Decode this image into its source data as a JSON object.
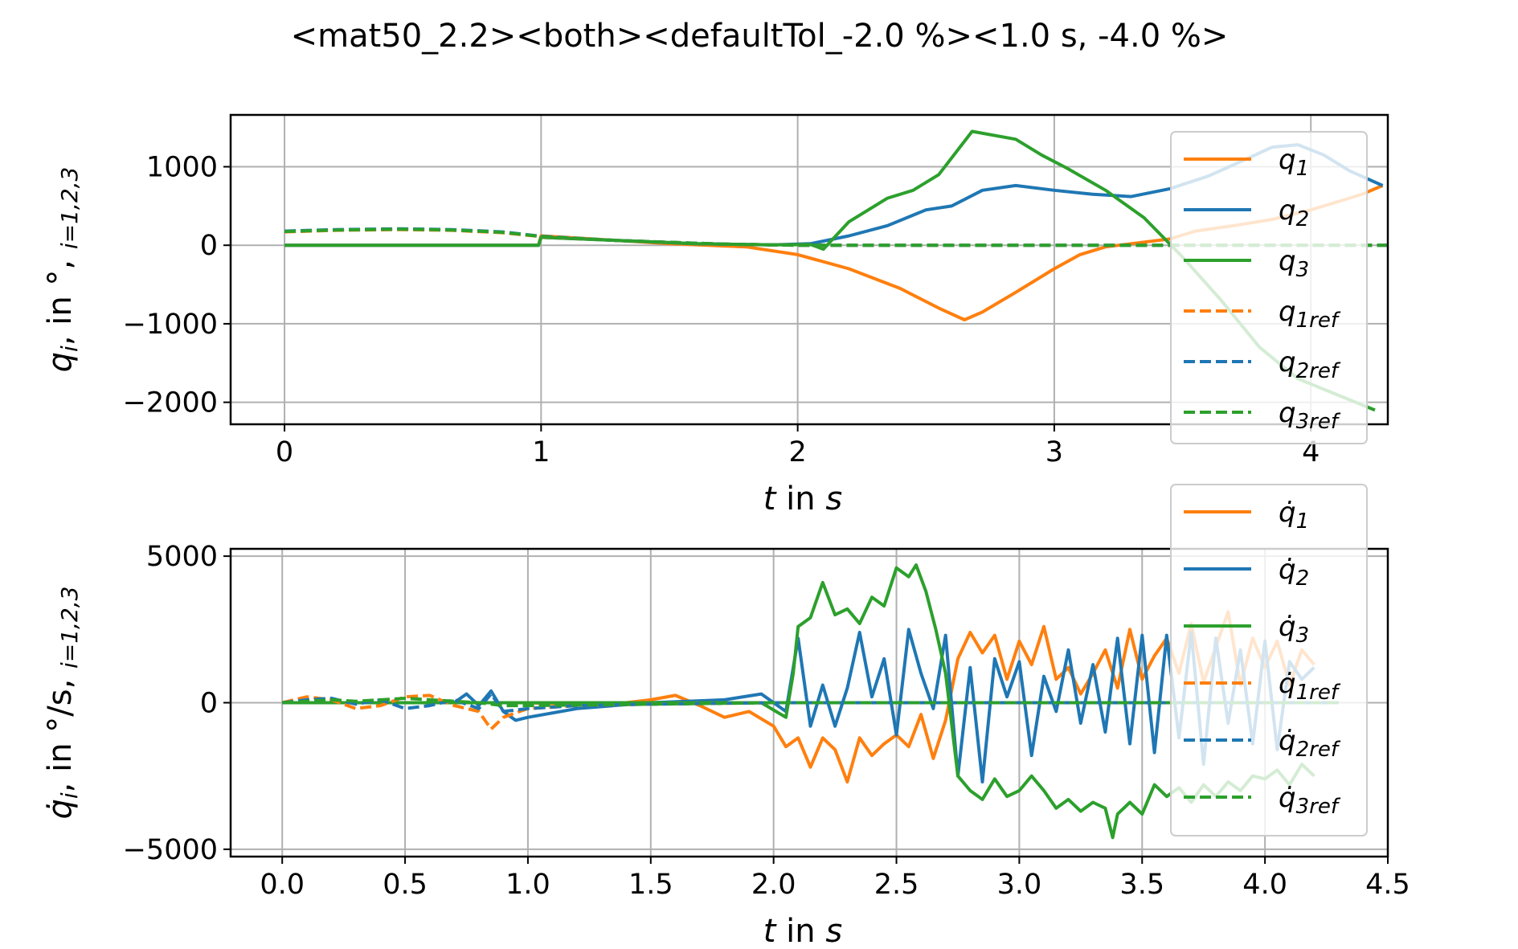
{
  "title": "<mat50_2.2><both><defaultTol_-2.0 %><1.0 s, -4.0 %>",
  "colors": {
    "q1": "#ff7f0e",
    "q2": "#1f77b4",
    "q3": "#2ca02c",
    "grid": "#b0b0b0"
  },
  "chart_data": [
    {
      "type": "line",
      "xlabel": "t in s",
      "ylabel": "q_i, in °, i=1,2,3",
      "xlim": [
        -0.21,
        4.3
      ],
      "ylim": [
        -2280,
        1660
      ],
      "xticks": [
        0,
        1,
        2,
        3,
        4
      ],
      "yticks": [
        1000,
        0,
        -1000,
        -2000
      ],
      "xtick_labels": [
        "0",
        "1",
        "2",
        "3",
        "4"
      ],
      "ytick_labels": [
        "1000",
        "0",
        "−1000",
        "−2000"
      ],
      "grid": true,
      "legend_position": "top-right",
      "series": [
        {
          "name": "q1",
          "color": "#ff7f0e",
          "dash": "solid",
          "x": [
            0,
            0.99,
            1.0,
            1.2,
            1.5,
            1.8,
            2.0,
            2.2,
            2.4,
            2.55,
            2.65,
            2.72,
            2.85,
            3.0,
            3.1,
            3.2,
            3.3,
            3.45,
            3.55,
            3.7,
            3.85,
            4.0,
            4.1,
            4.2,
            4.28
          ],
          "y": [
            0,
            0,
            120,
            80,
            20,
            -20,
            -120,
            -300,
            -550,
            -800,
            -950,
            -850,
            -600,
            -300,
            -120,
            -20,
            20,
            80,
            180,
            250,
            330,
            450,
            550,
            650,
            760
          ]
        },
        {
          "name": "q2",
          "color": "#1f77b4",
          "dash": "solid",
          "x": [
            0,
            0.99,
            1.0,
            1.3,
            1.6,
            1.9,
            2.05,
            2.2,
            2.35,
            2.5,
            2.6,
            2.72,
            2.85,
            3.0,
            3.15,
            3.3,
            3.45,
            3.6,
            3.75,
            3.85,
            3.95,
            4.05,
            4.15,
            4.28
          ],
          "y": [
            0,
            0,
            100,
            60,
            20,
            5,
            20,
            120,
            250,
            450,
            500,
            700,
            760,
            700,
            650,
            620,
            720,
            880,
            1100,
            1250,
            1280,
            1150,
            950,
            760
          ]
        },
        {
          "name": "q3",
          "color": "#2ca02c",
          "dash": "solid",
          "x": [
            0,
            0.99,
            1.0,
            1.3,
            1.6,
            1.9,
            2.05,
            2.1,
            2.2,
            2.35,
            2.45,
            2.55,
            2.68,
            2.85,
            2.95,
            3.05,
            3.2,
            3.35,
            3.5,
            3.65,
            3.8,
            3.95,
            4.1,
            4.25
          ],
          "y": [
            0,
            0,
            100,
            60,
            20,
            5,
            10,
            -50,
            300,
            600,
            700,
            900,
            1450,
            1350,
            1150,
            980,
            700,
            350,
            -150,
            -700,
            -1300,
            -1700,
            -1900,
            -2100
          ]
        },
        {
          "name": "q1ref",
          "color": "#ff7f0e",
          "dash": "dashed",
          "x": [
            0,
            0.2,
            0.45,
            0.65,
            0.85,
            1.0,
            1.3,
            1.7,
            2.0,
            4.3
          ],
          "y": [
            170,
            190,
            200,
            190,
            160,
            110,
            60,
            15,
            0,
            0
          ]
        },
        {
          "name": "q2ref",
          "color": "#1f77b4",
          "dash": "dashed",
          "x": [
            0,
            0.2,
            0.45,
            0.65,
            0.85,
            1.0,
            1.3,
            1.7,
            2.0,
            4.3
          ],
          "y": [
            180,
            200,
            210,
            200,
            170,
            115,
            60,
            15,
            0,
            0
          ]
        },
        {
          "name": "q3ref",
          "color": "#2ca02c",
          "dash": "dashed",
          "x": [
            0,
            0.2,
            0.45,
            0.65,
            0.85,
            1.0,
            1.3,
            1.7,
            2.0,
            4.3
          ],
          "y": [
            175,
            195,
            205,
            195,
            165,
            112,
            60,
            15,
            0,
            0
          ]
        }
      ]
    },
    {
      "type": "line",
      "xlabel": "t in s",
      "ylabel": "q̇_i, in °/s, i=1,2,3",
      "xlim": [
        -0.21,
        4.5
      ],
      "ylim": [
        -5250,
        5250
      ],
      "xticks": [
        0.0,
        0.5,
        1.0,
        1.5,
        2.0,
        2.5,
        3.0,
        3.5,
        4.0,
        4.5
      ],
      "yticks": [
        5000,
        0,
        -5000
      ],
      "xtick_labels": [
        "0.0",
        "0.5",
        "1.0",
        "1.5",
        "2.0",
        "2.5",
        "3.0",
        "3.5",
        "4.0",
        "4.5"
      ],
      "ytick_labels": [
        "5000",
        "0",
        "−5000"
      ],
      "grid": true,
      "legend_position": "top-right",
      "series": [
        {
          "name": "q̇1",
          "color": "#ff7f0e",
          "dash": "solid",
          "x": [
            0,
            1.0,
            1.3,
            1.5,
            1.6,
            1.7,
            1.8,
            1.9,
            2.0,
            2.05,
            2.1,
            2.15,
            2.2,
            2.25,
            2.3,
            2.35,
            2.4,
            2.45,
            2.5,
            2.55,
            2.6,
            2.65,
            2.7,
            2.75,
            2.8,
            2.85,
            2.9,
            2.95,
            3.0,
            3.05,
            3.1,
            3.15,
            3.2,
            3.25,
            3.3,
            3.35,
            3.4,
            3.45,
            3.5,
            3.55,
            3.6,
            3.65,
            3.7,
            3.75,
            3.8,
            3.85,
            3.9,
            3.95,
            4.0,
            4.05,
            4.1,
            4.15,
            4.2
          ],
          "y": [
            0,
            0,
            -100,
            100,
            250,
            -100,
            -500,
            -300,
            -800,
            -1500,
            -1200,
            -2200,
            -1200,
            -1600,
            -2700,
            -1200,
            -1800,
            -1400,
            -1100,
            -1500,
            -400,
            -1900,
            -600,
            1500,
            2400,
            1700,
            2300,
            800,
            2100,
            1300,
            2600,
            800,
            1200,
            300,
            1000,
            1800,
            500,
            2500,
            800,
            1600,
            2200,
            1000,
            2700,
            700,
            1900,
            3100,
            600,
            2200,
            1200,
            2100,
            600,
            1800,
            1300
          ]
        },
        {
          "name": "q̇2",
          "color": "#1f77b4",
          "dash": "solid",
          "x": [
            0,
            0.7,
            0.75,
            0.8,
            0.85,
            0.9,
            0.95,
            1.0,
            1.2,
            1.5,
            1.8,
            1.95,
            2.05,
            2.1,
            2.15,
            2.2,
            2.25,
            2.3,
            2.35,
            2.4,
            2.45,
            2.5,
            2.55,
            2.6,
            2.65,
            2.7,
            2.75,
            2.8,
            2.85,
            2.9,
            2.95,
            3.0,
            3.05,
            3.1,
            3.15,
            3.2,
            3.25,
            3.3,
            3.35,
            3.4,
            3.45,
            3.5,
            3.55,
            3.6,
            3.65,
            3.7,
            3.75,
            3.8,
            3.85,
            3.9,
            3.95,
            4.0,
            4.05,
            4.1,
            4.15,
            4.2
          ],
          "y": [
            0,
            0,
            300,
            -100,
            400,
            -300,
            -600,
            -500,
            -200,
            0,
            100,
            300,
            -300,
            2200,
            -800,
            600,
            -800,
            500,
            2400,
            200,
            1500,
            -1100,
            2500,
            1000,
            -200,
            2300,
            -2500,
            1200,
            -2700,
            1500,
            200,
            1400,
            -1800,
            900,
            -300,
            1800,
            -700,
            1300,
            -1000,
            2200,
            -1400,
            2300,
            -1700,
            2300,
            -1200,
            2400,
            -2100,
            2200,
            -700,
            1800,
            -1400,
            2100,
            -1600,
            1400,
            800,
            1200
          ]
        },
        {
          "name": "q̇3",
          "color": "#2ca02c",
          "dash": "solid",
          "x": [
            0,
            1.0,
            1.5,
            1.95,
            2.05,
            2.08,
            2.1,
            2.15,
            2.2,
            2.25,
            2.3,
            2.35,
            2.4,
            2.45,
            2.5,
            2.55,
            2.58,
            2.62,
            2.66,
            2.7,
            2.75,
            2.8,
            2.85,
            2.9,
            2.95,
            3.0,
            3.05,
            3.1,
            3.15,
            3.2,
            3.25,
            3.3,
            3.35,
            3.38,
            3.4,
            3.45,
            3.5,
            3.55,
            3.6,
            3.65,
            3.7,
            3.75,
            3.8,
            3.85,
            3.9,
            3.95,
            4.0,
            4.05,
            4.1,
            4.15,
            4.2
          ],
          "y": [
            0,
            0,
            0,
            0,
            -500,
            1000,
            2600,
            2900,
            4100,
            3000,
            3200,
            2700,
            3600,
            3300,
            4600,
            4300,
            4700,
            3800,
            2500,
            1000,
            -2500,
            -3000,
            -3300,
            -2600,
            -3200,
            -3000,
            -2500,
            -3000,
            -3600,
            -3300,
            -3700,
            -3400,
            -3600,
            -4600,
            -3800,
            -3400,
            -3800,
            -2800,
            -3200,
            -2900,
            -3400,
            -2800,
            -3200,
            -2700,
            -3000,
            -2500,
            -2600,
            -2300,
            -2800,
            -2100,
            -2500
          ]
        },
        {
          "name": "q̇1ref",
          "color": "#ff7f0e",
          "dash": "dashed",
          "x": [
            0,
            0.1,
            0.2,
            0.3,
            0.4,
            0.5,
            0.6,
            0.7,
            0.8,
            0.85,
            0.9,
            1.0,
            1.2,
            1.5,
            2.0,
            4.3
          ],
          "y": [
            0,
            200,
            100,
            -200,
            -100,
            200,
            250,
            -100,
            -300,
            -900,
            -500,
            -200,
            -100,
            -50,
            0,
            0
          ]
        },
        {
          "name": "q̇2ref",
          "color": "#1f77b4",
          "dash": "dashed",
          "x": [
            0,
            0.1,
            0.2,
            0.3,
            0.4,
            0.5,
            0.6,
            0.7,
            0.8,
            0.85,
            0.9,
            1.0,
            1.2,
            1.5,
            2.0,
            4.3
          ],
          "y": [
            0,
            100,
            150,
            -50,
            100,
            -200,
            -100,
            100,
            -200,
            300,
            -300,
            -200,
            -100,
            -50,
            0,
            0
          ]
        },
        {
          "name": "q̇3ref",
          "color": "#2ca02c",
          "dash": "dashed",
          "x": [
            0,
            0.1,
            0.2,
            0.3,
            0.4,
            0.5,
            0.6,
            0.7,
            0.8,
            0.9,
            1.0,
            1.5,
            2.0,
            4.3
          ],
          "y": [
            0,
            50,
            100,
            50,
            100,
            150,
            100,
            50,
            0,
            -100,
            -100,
            -50,
            0,
            0
          ]
        }
      ]
    }
  ]
}
